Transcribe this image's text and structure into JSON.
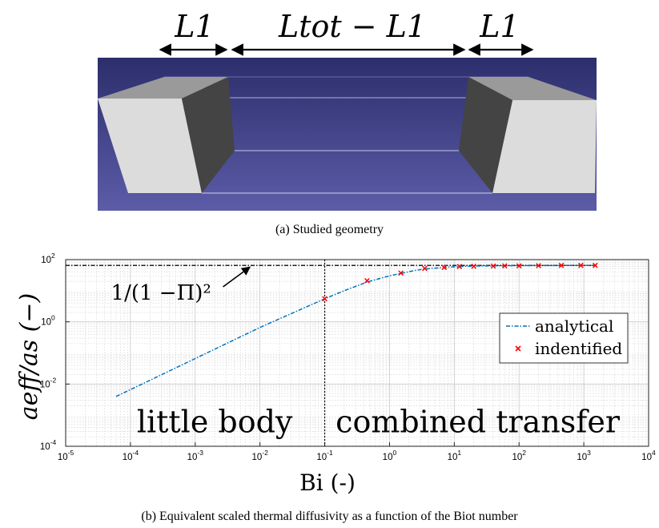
{
  "geometry_panel": {
    "caption": "(a) Studied geometry",
    "dim_left": "L1",
    "dim_middle": "Ltot − L1",
    "dim_right": "L1",
    "colors": {
      "background_top": "#2c2e6c",
      "background_bottom": "#5c5ca8",
      "block_light": "#d8d8d8",
      "block_dark": "#444444"
    }
  },
  "chart_data": {
    "type": "scatter",
    "caption": "(b) Equivalent scaled thermal diffusivity as a function of the Biot number",
    "xlabel": "Bi (-)",
    "ylabel": "aeff/as (−)",
    "xscale": "log",
    "yscale": "log",
    "xlim": [
      1e-05,
      10000.0
    ],
    "ylim": [
      0.0001,
      100.0
    ],
    "grid": true,
    "legend_position": "center-right",
    "x_ticks": [
      {
        "value": 1e-05,
        "base": "10",
        "exp": "-5"
      },
      {
        "value": 0.0001,
        "base": "10",
        "exp": "-4"
      },
      {
        "value": 0.001,
        "base": "10",
        "exp": "-3"
      },
      {
        "value": 0.01,
        "base": "10",
        "exp": "-2"
      },
      {
        "value": 0.1,
        "base": "10",
        "exp": "-1"
      },
      {
        "value": 1,
        "base": "10",
        "exp": "0"
      },
      {
        "value": 10,
        "base": "10",
        "exp": "1"
      },
      {
        "value": 100,
        "base": "10",
        "exp": "2"
      },
      {
        "value": 1000,
        "base": "10",
        "exp": "3"
      },
      {
        "value": 10000,
        "base": "10",
        "exp": "4"
      }
    ],
    "y_ticks": [
      {
        "value": 0.0001,
        "base": "10",
        "exp": "-4"
      },
      {
        "value": 0.01,
        "base": "10",
        "exp": "-2"
      },
      {
        "value": 1,
        "base": "10",
        "exp": "0"
      },
      {
        "value": 100,
        "base": "10",
        "exp": "2"
      }
    ],
    "series": [
      {
        "name": "analytical",
        "kind": "line",
        "color": "#0072bd",
        "x": [
          6e-05,
          0.0001,
          0.001,
          0.01,
          0.1,
          0.2,
          0.45,
          1.0,
          1.5,
          2.5,
          3.5,
          7,
          12,
          20,
          40,
          100,
          200,
          500,
          1000,
          1500
        ],
        "y": [
          0.004,
          0.0066,
          0.066,
          0.66,
          5.5,
          10,
          19,
          30,
          36,
          45,
          50,
          56,
          60,
          62,
          63,
          64,
          64.5,
          65,
          65,
          65
        ]
      },
      {
        "name": "indentified",
        "kind": "marker",
        "color": "#ff0000",
        "x": [
          0.1,
          0.45,
          1.5,
          3.5,
          7,
          12,
          20,
          40,
          60,
          100,
          200,
          450,
          900,
          1500
        ],
        "y": [
          5.5,
          21,
          37,
          52,
          56,
          60,
          61,
          62,
          63,
          63,
          64,
          65,
          65,
          65
        ]
      }
    ],
    "reference_lines": [
      {
        "kind": "horizontal",
        "value": 65,
        "x_from": 1e-05,
        "x_to": 1500
      },
      {
        "kind": "vertical",
        "value": 0.1
      }
    ],
    "annotations": [
      {
        "text": "1/(1 −Π)²",
        "x": 5e-05,
        "y": 15,
        "arrow_to_x": 0.007,
        "arrow_to_y": 65
      },
      {
        "text": "little body",
        "x": 0.002,
        "y": 0.0004
      },
      {
        "text": "combined transfer",
        "x": 15,
        "y": 0.0004
      }
    ]
  }
}
